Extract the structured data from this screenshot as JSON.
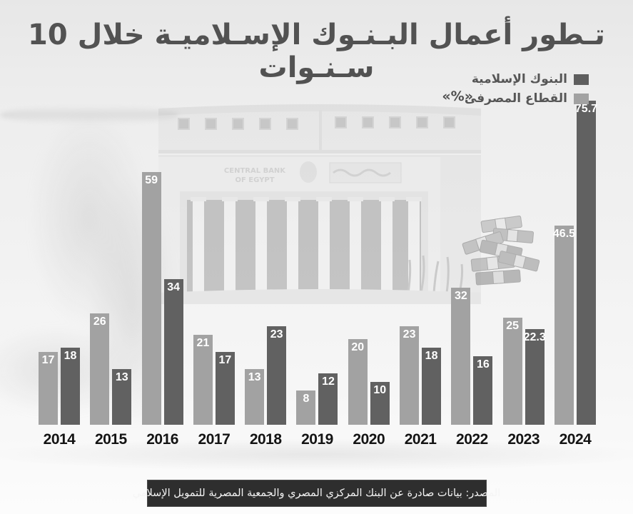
{
  "title": "تـطور أعمال البـنـوك الإسـلاميـة خلال 10 سـنـوات",
  "legend": {
    "islamic_banks_label": "البنوك الإسلامية",
    "banking_sector_label": "القطاع المصرفى",
    "unit_label": "«%»",
    "islamic_banks_color": "#5e5e5e",
    "banking_sector_color": "#a2a2a2"
  },
  "source": {
    "text": "المصدر: بيانات صادرة عن البنك المركزي المصري والجمعية المصرية للتمويل الإسلامي"
  },
  "background": {
    "building_sign_line1": "CENTRAL BANK",
    "building_sign_line2": "OF EGYPT"
  },
  "chart_data": {
    "type": "bar",
    "title": "تطور أعمال البنوك الإسلامية خلال 10 سنوات",
    "unit": "%",
    "categories": [
      "2014",
      "2015",
      "2016",
      "2017",
      "2018",
      "2019",
      "2020",
      "2021",
      "2022",
      "2023",
      "2024"
    ],
    "series": [
      {
        "name": "القطاع المصرفى",
        "color": "#a2a2a2",
        "values": [
          17,
          26,
          59,
          21,
          13,
          8,
          20,
          23,
          32,
          25,
          46.5
        ]
      },
      {
        "name": "البنوك الإسلامية",
        "color": "#616161",
        "values": [
          18,
          13,
          34,
          17,
          23,
          12,
          10,
          18,
          16,
          22.3,
          75.7
        ]
      }
    ],
    "ylim": [
      0,
      76.5
    ],
    "value_labels": true,
    "grid": false,
    "legend_position": "top-right",
    "bar_order_note": "in each year group the banking-sector (light) bar is on the left, islamic-banks (dark) bar on the right"
  }
}
